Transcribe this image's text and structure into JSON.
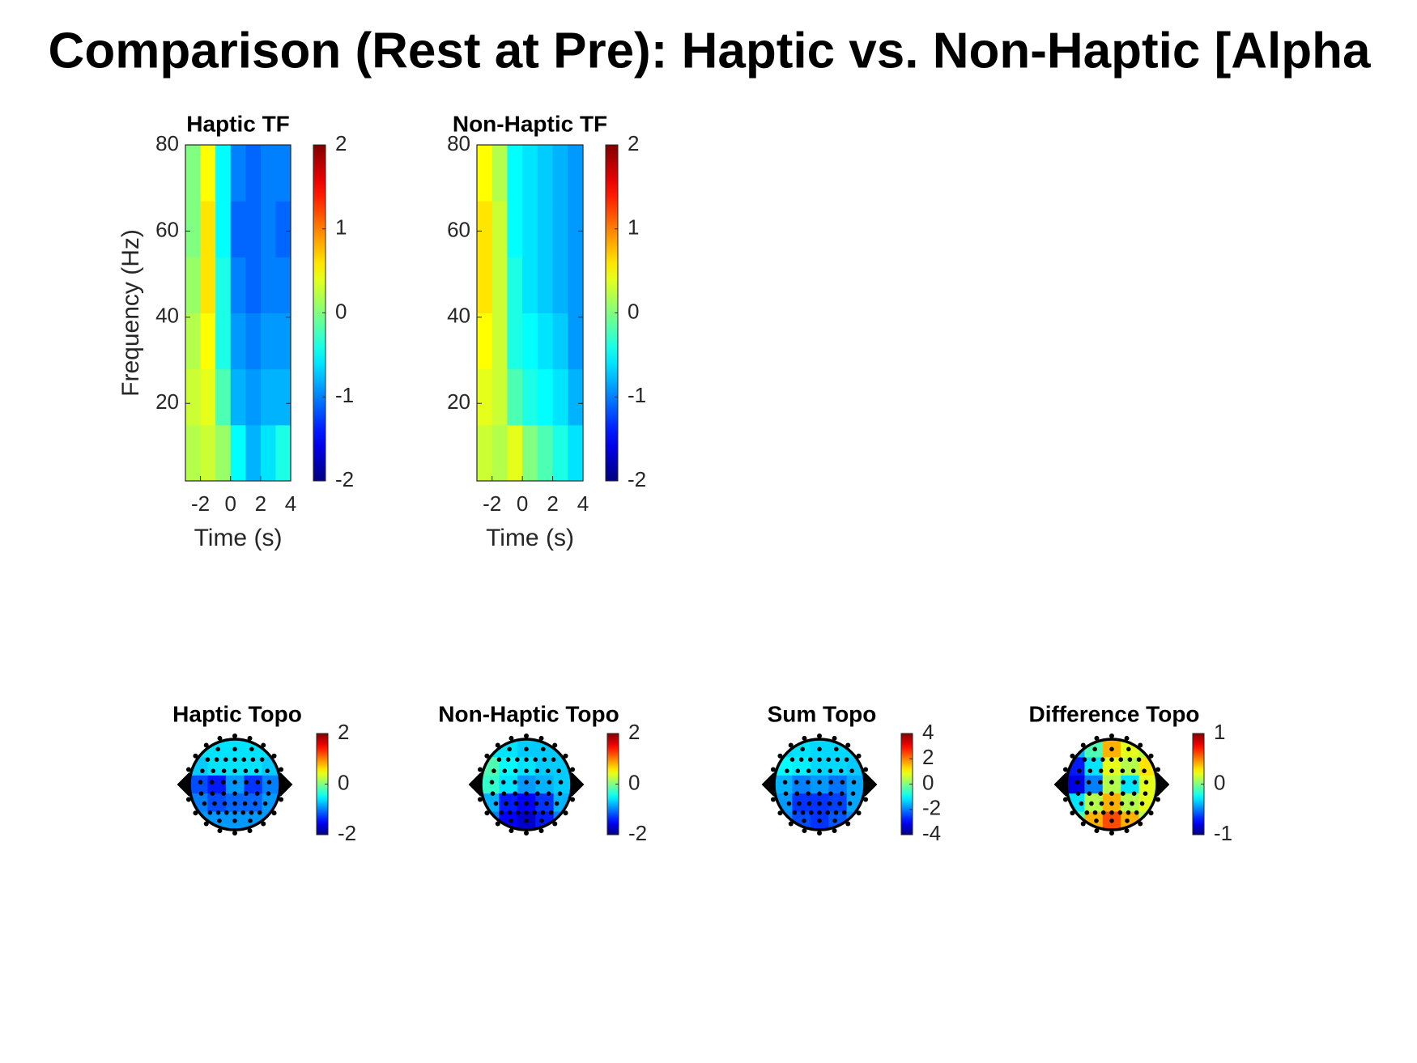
{
  "title": "Comparison (Rest at Pre): Haptic vs. Non-Haptic [Alpha",
  "chart_data": [
    {
      "type": "heatmap",
      "title": "Haptic TF",
      "xlabel": "Time (s)",
      "ylabel": "Frequency (Hz)",
      "x": [
        -2.5,
        -1.5,
        -0.5,
        0.5,
        1.5,
        2.5,
        3.5
      ],
      "y": [
        8.5,
        21.5,
        34.5,
        47.5,
        60.5,
        73.5
      ],
      "z": [
        [
          0.2,
          0.3,
          0.1,
          -0.5,
          -0.8,
          -0.6,
          -0.4
        ],
        [
          0.3,
          0.4,
          -0.2,
          -0.8,
          -0.9,
          -0.8,
          -0.8
        ],
        [
          0.2,
          0.5,
          -0.4,
          -0.9,
          -1.0,
          -0.9,
          -0.9
        ],
        [
          0.1,
          0.6,
          -0.4,
          -1.0,
          -1.1,
          -1.0,
          -1.0
        ],
        [
          0.0,
          0.6,
          -0.5,
          -1.1,
          -1.1,
          -1.0,
          -1.1
        ],
        [
          0.0,
          0.5,
          -0.5,
          -1.0,
          -1.1,
          -1.0,
          -1.0
        ]
      ],
      "xlim": [
        -3,
        4
      ],
      "ylim": [
        2,
        80
      ],
      "xticks": [
        -2,
        0,
        2,
        4
      ],
      "yticks": [
        20,
        40,
        60,
        80
      ],
      "colormap": "jet",
      "clim": [
        -2,
        2
      ],
      "cticks": [
        -2,
        -1,
        0,
        1,
        2
      ]
    },
    {
      "type": "heatmap",
      "title": "Non-Haptic TF",
      "xlabel": "Time (s)",
      "x": [
        -2.5,
        -1.5,
        -0.5,
        0.5,
        1.5,
        2.5,
        3.5
      ],
      "y": [
        8.5,
        21.5,
        34.5,
        47.5,
        60.5,
        73.5
      ],
      "z": [
        [
          0.3,
          0.2,
          0.4,
          0.0,
          -0.2,
          -0.4,
          -0.6
        ],
        [
          0.4,
          0.3,
          -0.2,
          -0.4,
          -0.5,
          -0.6,
          -0.8
        ],
        [
          0.5,
          0.3,
          -0.4,
          -0.5,
          -0.6,
          -0.7,
          -0.9
        ],
        [
          0.6,
          0.3,
          -0.4,
          -0.6,
          -0.7,
          -0.8,
          -0.9
        ],
        [
          0.6,
          0.3,
          -0.5,
          -0.6,
          -0.7,
          -0.8,
          -0.9
        ],
        [
          0.5,
          0.2,
          -0.5,
          -0.6,
          -0.7,
          -0.8,
          -0.9
        ]
      ],
      "xlim": [
        -3,
        4
      ],
      "ylim": [
        2,
        80
      ],
      "xticks": [
        -2,
        0,
        2,
        4
      ],
      "yticks": [
        20,
        40,
        60,
        80
      ],
      "colormap": "jet",
      "clim": [
        -2,
        2
      ],
      "cticks": [
        -2,
        -1,
        0,
        1,
        2
      ]
    },
    {
      "type": "topo",
      "title": "Haptic Topo",
      "z": [
        [
          -0.6,
          -0.6,
          -0.6,
          -0.6,
          -0.6
        ],
        [
          -0.7,
          -0.6,
          -0.6,
          -0.6,
          -0.7
        ],
        [
          -1.2,
          -1.4,
          -0.9,
          -1.3,
          -1.0
        ],
        [
          -1.0,
          -1.2,
          -1.1,
          -1.1,
          -0.9
        ],
        [
          -0.9,
          -0.9,
          -0.9,
          -0.9,
          -0.9
        ]
      ],
      "colormap": "jet",
      "clim": [
        -2,
        2
      ],
      "cticks": [
        -2,
        0,
        2
      ]
    },
    {
      "type": "topo",
      "title": "Non-Haptic Topo",
      "z": [
        [
          -0.6,
          -0.6,
          -0.7,
          -0.7,
          -0.7
        ],
        [
          -0.2,
          -0.5,
          -0.6,
          -0.7,
          -0.7
        ],
        [
          -0.3,
          -0.6,
          -0.9,
          -0.8,
          -0.7
        ],
        [
          -0.8,
          -1.4,
          -1.5,
          -1.3,
          -0.8
        ],
        [
          -1.0,
          -1.5,
          -1.7,
          -1.4,
          -1.0
        ]
      ],
      "colormap": "jet",
      "clim": [
        -2,
        2
      ],
      "cticks": [
        -2,
        0,
        2
      ]
    },
    {
      "type": "topo",
      "title": "Sum Topo",
      "z": [
        [
          -1.3,
          -1.2,
          -1.3,
          -1.3,
          -1.3
        ],
        [
          -1.0,
          -1.1,
          -1.3,
          -1.3,
          -1.4
        ],
        [
          -1.6,
          -2.0,
          -1.8,
          -2.1,
          -1.7
        ],
        [
          -1.8,
          -2.6,
          -2.6,
          -2.5,
          -1.7
        ],
        [
          -1.9,
          -2.4,
          -2.6,
          -2.3,
          -1.9
        ]
      ],
      "colormap": "jet",
      "clim": [
        -4,
        4
      ],
      "cticks": [
        -4,
        -2,
        0,
        2,
        4
      ]
    },
    {
      "type": "topo",
      "title": "Difference Topo",
      "z": [
        [
          -0.4,
          -0.1,
          0.4,
          0.2,
          0.1
        ],
        [
          -0.7,
          -0.3,
          0.2,
          0.1,
          0.3
        ],
        [
          -0.8,
          -0.5,
          0.1,
          -0.3,
          0.2
        ],
        [
          -0.3,
          0.1,
          0.4,
          0.1,
          0.2
        ],
        [
          -0.1,
          0.4,
          0.6,
          0.4,
          0.1
        ]
      ],
      "colormap": "jet",
      "clim": [
        -1,
        1
      ],
      "cticks": [
        -1,
        0,
        1
      ]
    }
  ]
}
